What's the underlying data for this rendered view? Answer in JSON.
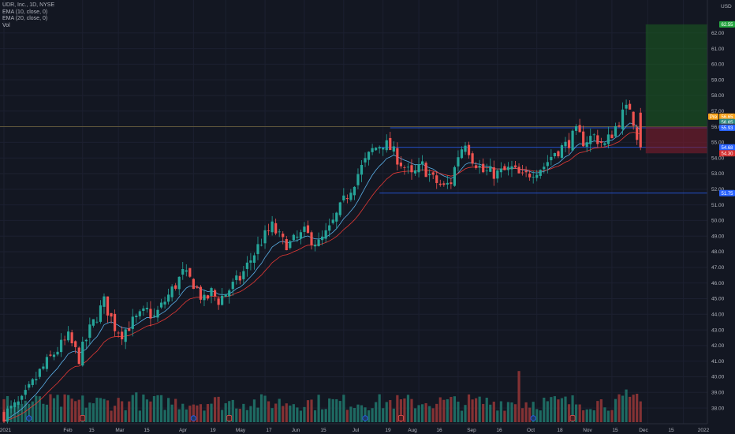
{
  "legend": {
    "symbol": "UDR, Inc., 1D, NYSE",
    "ema1": "EMA (10, close, 0)",
    "ema2": "EMA (20, close, 0)",
    "vol": "Vol"
  },
  "price_axis": {
    "currency": "USD",
    "ticks": [
      "62.00",
      "61.00",
      "60.00",
      "59.00",
      "58.00",
      "57.00",
      "56.00",
      "55.00",
      "54.00",
      "53.00",
      "52.00",
      "51.00",
      "50.00",
      "49.00",
      "48.00",
      "47.00",
      "46.00",
      "45.00",
      "44.00",
      "43.00",
      "42.00",
      "41.00",
      "40.00",
      "39.00",
      "38.00"
    ],
    "tags": [
      {
        "text": "62.55",
        "value": 62.55,
        "color": "#26a641"
      },
      {
        "text": "Pre",
        "value": 56.65,
        "color": "#f7a21b"
      },
      {
        "text": "56.65",
        "value": 56.65,
        "color": "#f7a21b"
      },
      {
        "text": "56.65",
        "value": 56.3,
        "color": "#2e8b82"
      },
      {
        "text": "56.65",
        "value": 56.0,
        "color": "#363a45"
      },
      {
        "text": "55.93",
        "value": 55.93,
        "color": "#2962ff"
      },
      {
        "text": "54.68",
        "value": 54.68,
        "color": "#2962ff"
      },
      {
        "text": "54.30",
        "value": 54.3,
        "color": "#d32f2f"
      },
      {
        "text": "51.75",
        "value": 51.75,
        "color": "#2962ff"
      }
    ]
  },
  "time_axis": {
    "labels": [
      "2021",
      "Feb",
      "15",
      "Mar",
      "15",
      "Apr",
      "19",
      "May",
      "17",
      "Jun",
      "15",
      "Jul",
      "19",
      "Aug",
      "16",
      "Sep",
      "16",
      "Oct",
      "18",
      "Nov",
      "15",
      "Dec",
      "15",
      "2022"
    ]
  },
  "colors": {
    "background": "#131722",
    "up": "#26a69a",
    "down": "#ef5350",
    "ema_fast": "#5bb0e8",
    "ema_slow": "#e53935",
    "hline": "#2962ff"
  },
  "chart_data": {
    "type": "candlestick",
    "title": "UDR, Inc., 1D, NYSE",
    "ylim": [
      37.5,
      63.2
    ],
    "ylabel": "USD",
    "close_path": [
      [
        0,
        37.6
      ],
      [
        5,
        38.4
      ],
      [
        10,
        40.3
      ],
      [
        14,
        41.5
      ],
      [
        18,
        42.5
      ],
      [
        21,
        41.2
      ],
      [
        24,
        43.0
      ],
      [
        28,
        44.8
      ],
      [
        31,
        43.2
      ],
      [
        33,
        42.8
      ],
      [
        36,
        43.5
      ],
      [
        40,
        44.2
      ],
      [
        42,
        43.8
      ],
      [
        46,
        45.2
      ],
      [
        50,
        46.6
      ],
      [
        53,
        46.0
      ],
      [
        56,
        44.8
      ],
      [
        58,
        45.4
      ],
      [
        60,
        44.9
      ],
      [
        63,
        45.6
      ],
      [
        66,
        46.3
      ],
      [
        69,
        47.5
      ],
      [
        72,
        48.7
      ],
      [
        75,
        49.6
      ],
      [
        78,
        48.6
      ],
      [
        80,
        48.5
      ],
      [
        84,
        49.2
      ],
      [
        88,
        48.5
      ],
      [
        91,
        49.4
      ],
      [
        95,
        51.2
      ],
      [
        99,
        53.0
      ],
      [
        103,
        54.5
      ],
      [
        106,
        55.0
      ],
      [
        108,
        54.6
      ],
      [
        111,
        53.7
      ],
      [
        114,
        52.8
      ],
      [
        117,
        53.5
      ],
      [
        120,
        52.6
      ],
      [
        123,
        52.1
      ],
      [
        125,
        52.5
      ],
      [
        127,
        54.2
      ],
      [
        129,
        55.1
      ],
      [
        131,
        54.0
      ],
      [
        134,
        53.1
      ],
      [
        138,
        53.0
      ],
      [
        142,
        53.3
      ],
      [
        145,
        52.7
      ],
      [
        148,
        53.2
      ],
      [
        151,
        53.5
      ],
      [
        154,
        54.4
      ],
      [
        157,
        54.8
      ],
      [
        160,
        55.6
      ],
      [
        162,
        55.1
      ],
      [
        165,
        55.4
      ],
      [
        168,
        54.8
      ],
      [
        170,
        55.6
      ],
      [
        173,
        56.8
      ],
      [
        175,
        57.3
      ],
      [
        177,
        55.5
      ],
      [
        178,
        54.68
      ]
    ],
    "volume_spikes": [
      [
        37,
        4.2
      ],
      [
        116,
        2.4
      ],
      [
        144,
        7.2
      ],
      [
        174,
        4.6
      ]
    ],
    "events": [
      {
        "bar": 7,
        "kind": "dividend"
      },
      {
        "bar": 22,
        "kind": "earnings"
      },
      {
        "bar": 63,
        "kind": "earnings"
      },
      {
        "bar": 53,
        "kind": "dividend"
      },
      {
        "bar": 101,
        "kind": "dividend"
      },
      {
        "bar": 111,
        "kind": "earnings"
      },
      {
        "bar": 148,
        "kind": "dividend"
      },
      {
        "bar": 159,
        "kind": "earnings"
      }
    ],
    "horizontal_levels": [
      {
        "value": 55.93,
        "from_bar": 108
      },
      {
        "value": 54.68,
        "from_bar": 105
      },
      {
        "value": 51.75,
        "from_bar": 105
      }
    ],
    "position_box": {
      "entry": 56.0,
      "target": 62.55,
      "stop": 54.3,
      "from_bar": 179,
      "to_bar": 197
    },
    "entry_line": 56.0
  }
}
